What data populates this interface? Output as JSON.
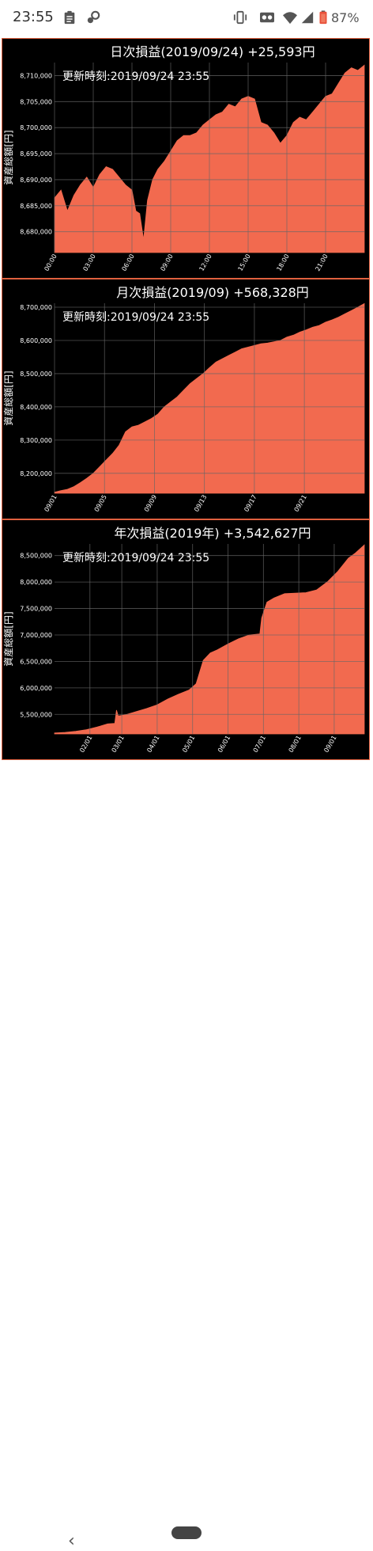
{
  "status_bar": {
    "time": "23:55",
    "battery": "87%",
    "icons": [
      "clipboard-icon",
      "key-icon",
      "vibrate-icon",
      "voicemail-icon",
      "wifi-icon",
      "signal-icon",
      "battery-icon"
    ]
  },
  "colors": {
    "fill": "#f26a4f",
    "panel_bg": "#000000",
    "border": "#e0603f",
    "text": "#ffffff",
    "grid": "#666666"
  },
  "chart_data": [
    {
      "type": "area",
      "title": "日次損益(2019/09/24) +25,593円",
      "annotation": "更新時刻:2019/09/24 23:55",
      "xlabel": "",
      "ylabel": "資産総額[円]",
      "x_ticks": [
        "00:00",
        "03:00",
        "06:00",
        "09:00",
        "12:00",
        "15:00",
        "18:00",
        "21:00"
      ],
      "y_ticks": [
        "8,680,000",
        "8,685,000",
        "8,690,000",
        "8,695,000",
        "8,700,000",
        "8,705,000",
        "8,710,000"
      ],
      "y_tick_values": [
        8680000,
        8685000,
        8690000,
        8695000,
        8700000,
        8705000,
        8710000
      ],
      "xlim": [
        0,
        24
      ],
      "ylim": [
        8676000,
        8712500
      ],
      "x": [
        0,
        0.5,
        1,
        1.5,
        2,
        2.5,
        3,
        3.5,
        4,
        4.5,
        5,
        5.5,
        6,
        6.3,
        6.6,
        6.9,
        7.2,
        7.6,
        8,
        8.5,
        9,
        9.5,
        10,
        10.5,
        11,
        11.5,
        12,
        12.5,
        13,
        13.5,
        14,
        14.5,
        15,
        15.5,
        16,
        16.5,
        17,
        17.5,
        18,
        18.5,
        19,
        19.5,
        20,
        20.5,
        21,
        21.5,
        22,
        22.5,
        23,
        23.5,
        24
      ],
      "values": [
        8686500,
        8688000,
        8684000,
        8687000,
        8689000,
        8690500,
        8688500,
        8691000,
        8692500,
        8692000,
        8690500,
        8689000,
        8688000,
        8684000,
        8683500,
        8678500,
        8686000,
        8690000,
        8692000,
        8693500,
        8695500,
        8697500,
        8698500,
        8698500,
        8699000,
        8700500,
        8701500,
        8702500,
        8703000,
        8704500,
        8704000,
        8705500,
        8706000,
        8705500,
        8701000,
        8700500,
        8699000,
        8697000,
        8698500,
        8701000,
        8702000,
        8701500,
        8703000,
        8704500,
        8706000,
        8706500,
        8708500,
        8710500,
        8711500,
        8711000,
        8712000
      ]
    },
    {
      "type": "area",
      "title": "月次損益(2019/09) +568,328円",
      "annotation": "更新時刻:2019/09/24 23:55",
      "xlabel": "",
      "ylabel": "資産総額[円]",
      "x_ticks": [
        "09/01",
        "09/05",
        "09/09",
        "09/13",
        "09/17",
        "09/21"
      ],
      "y_ticks": [
        "8,200,000",
        "8,300,000",
        "8,400,000",
        "8,500,000",
        "8,600,000",
        "8,700,000"
      ],
      "y_tick_values": [
        8200000,
        8300000,
        8400000,
        8500000,
        8600000,
        8700000
      ],
      "xlim": [
        1,
        25
      ],
      "ylim": [
        8140000,
        8712000
      ],
      "x": [
        1,
        1.5,
        2,
        2.5,
        3,
        3.5,
        4,
        4.5,
        5,
        5.5,
        6,
        6.5,
        7,
        7.5,
        8,
        8.5,
        9,
        9.5,
        10,
        10.5,
        11,
        11.5,
        12,
        12.5,
        13,
        13.5,
        14,
        14.5,
        15,
        15.5,
        16,
        16.5,
        17,
        17.5,
        18,
        18.5,
        19,
        19.5,
        20,
        20.5,
        21,
        21.5,
        22,
        22.5,
        23,
        23.5,
        24,
        24.5,
        25
      ],
      "values": [
        8143000,
        8148000,
        8152000,
        8160000,
        8172000,
        8185000,
        8200000,
        8220000,
        8240000,
        8260000,
        8285000,
        8325000,
        8340000,
        8345000,
        8355000,
        8365000,
        8378000,
        8400000,
        8415000,
        8430000,
        8450000,
        8470000,
        8485000,
        8500000,
        8518000,
        8535000,
        8545000,
        8555000,
        8565000,
        8575000,
        8580000,
        8585000,
        8590000,
        8592000,
        8596000,
        8600000,
        8610000,
        8616000,
        8625000,
        8632000,
        8640000,
        8645000,
        8655000,
        8662000,
        8670000,
        8680000,
        8690000,
        8700000,
        8711000
      ]
    },
    {
      "type": "area",
      "title": "年次損益(2019年) +3,542,627円",
      "annotation": "更新時刻:2019/09/24 23:55",
      "xlabel": "",
      "ylabel": "資産総額[円]",
      "x_ticks": [
        "02/01",
        "03/01",
        "04/01",
        "05/01",
        "06/01",
        "07/01",
        "08/01",
        "09/01"
      ],
      "x_tick_values": [
        1.0,
        1.9,
        2.9,
        3.9,
        4.9,
        5.9,
        6.9,
        7.9
      ],
      "y_ticks": [
        "5,500,000",
        "6,000,000",
        "6,500,000",
        "7,000,000",
        "7,500,000",
        "8,000,000",
        "8,500,000"
      ],
      "y_tick_values": [
        5500000,
        6000000,
        6500000,
        7000000,
        7500000,
        8000000,
        8500000
      ],
      "xlim": [
        0,
        8.75
      ],
      "ylim": [
        5130000,
        8720000
      ],
      "x": [
        0,
        0.3,
        0.6,
        0.9,
        1.2,
        1.5,
        1.7,
        1.75,
        1.8,
        2.0,
        2.3,
        2.6,
        2.9,
        3.2,
        3.5,
        3.8,
        4.0,
        4.1,
        4.2,
        4.4,
        4.6,
        4.9,
        5.2,
        5.5,
        5.8,
        5.85,
        6.0,
        6.2,
        6.5,
        6.8,
        7.1,
        7.4,
        7.7,
        8.0,
        8.3,
        8.5,
        8.75
      ],
      "values": [
        5150000,
        5160000,
        5180000,
        5210000,
        5260000,
        5320000,
        5330000,
        5580000,
        5470000,
        5490000,
        5550000,
        5610000,
        5680000,
        5790000,
        5880000,
        5960000,
        6080000,
        6300000,
        6520000,
        6660000,
        6720000,
        6830000,
        6930000,
        7000000,
        7020000,
        7320000,
        7620000,
        7700000,
        7780000,
        7790000,
        7800000,
        7850000,
        8000000,
        8200000,
        8450000,
        8550000,
        8700000
      ]
    }
  ]
}
